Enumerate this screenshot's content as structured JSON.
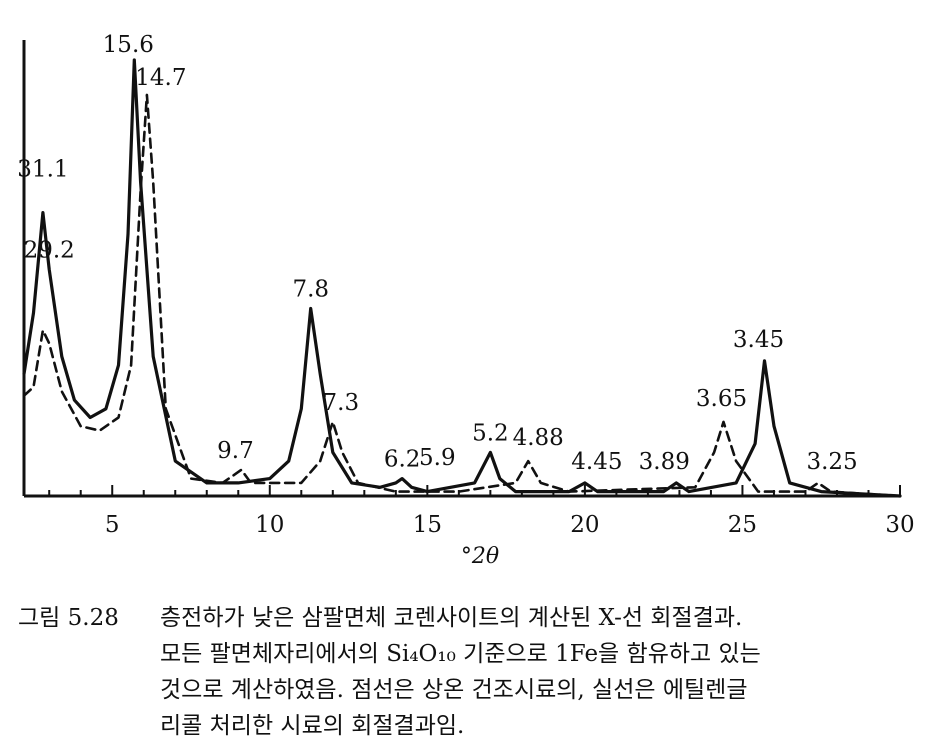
{
  "chart_data": {
    "type": "line",
    "xlabel": "°2θ",
    "xlim": [
      2.2,
      30
    ],
    "ylim": [
      0,
      100
    ],
    "x_ticks": [
      5,
      10,
      15,
      20,
      25,
      30
    ],
    "series": [
      {
        "style": "solid",
        "points": [
          [
            2.2,
            28
          ],
          [
            2.5,
            42
          ],
          [
            2.8,
            65
          ],
          [
            3.0,
            52
          ],
          [
            3.4,
            32
          ],
          [
            3.8,
            22
          ],
          [
            4.3,
            18
          ],
          [
            4.8,
            20
          ],
          [
            5.2,
            30
          ],
          [
            5.5,
            60
          ],
          [
            5.7,
            100
          ],
          [
            5.9,
            72
          ],
          [
            6.3,
            32
          ],
          [
            7.0,
            8
          ],
          [
            8.0,
            3
          ],
          [
            9.0,
            3
          ],
          [
            10.0,
            4
          ],
          [
            10.6,
            8
          ],
          [
            11.0,
            20
          ],
          [
            11.3,
            43
          ],
          [
            11.6,
            28
          ],
          [
            12.0,
            10
          ],
          [
            12.6,
            3
          ],
          [
            13.5,
            2
          ],
          [
            14.0,
            3
          ],
          [
            14.2,
            4
          ],
          [
            14.5,
            2
          ],
          [
            15.0,
            1
          ],
          [
            16.5,
            3
          ],
          [
            17.0,
            10
          ],
          [
            17.3,
            4
          ],
          [
            17.8,
            1
          ],
          [
            19.5,
            1
          ],
          [
            20.0,
            3
          ],
          [
            20.4,
            1
          ],
          [
            22.5,
            1
          ],
          [
            22.9,
            3
          ],
          [
            23.3,
            1
          ],
          [
            24.8,
            3
          ],
          [
            25.4,
            12
          ],
          [
            25.7,
            31
          ],
          [
            26.0,
            16
          ],
          [
            26.5,
            3
          ],
          [
            27.5,
            1
          ],
          [
            30,
            0
          ]
        ]
      },
      {
        "style": "dashed",
        "points": [
          [
            2.2,
            23
          ],
          [
            2.5,
            25
          ],
          [
            2.8,
            38
          ],
          [
            3.0,
            35
          ],
          [
            3.4,
            24
          ],
          [
            4.0,
            16
          ],
          [
            4.6,
            15
          ],
          [
            5.2,
            18
          ],
          [
            5.6,
            30
          ],
          [
            5.9,
            70
          ],
          [
            6.1,
            92
          ],
          [
            6.3,
            72
          ],
          [
            6.7,
            20
          ],
          [
            7.5,
            4
          ],
          [
            8.5,
            3
          ],
          [
            8.9,
            5
          ],
          [
            9.1,
            6
          ],
          [
            9.4,
            3
          ],
          [
            10.0,
            3
          ],
          [
            11.0,
            3
          ],
          [
            11.6,
            8
          ],
          [
            12.0,
            17
          ],
          [
            12.3,
            10
          ],
          [
            12.8,
            3
          ],
          [
            14.0,
            1
          ],
          [
            16.0,
            1
          ],
          [
            17.8,
            3
          ],
          [
            18.2,
            8
          ],
          [
            18.6,
            3
          ],
          [
            19.5,
            1
          ],
          [
            23.5,
            2
          ],
          [
            24.1,
            10
          ],
          [
            24.4,
            17
          ],
          [
            24.8,
            8
          ],
          [
            25.5,
            1
          ],
          [
            27.0,
            1
          ],
          [
            27.4,
            3
          ],
          [
            27.8,
            1
          ],
          [
            30,
            0
          ]
        ]
      }
    ],
    "peak_labels": [
      {
        "text": "31.1",
        "x": 2.8,
        "y": 65
      },
      {
        "text": "29.2",
        "x": 3.0,
        "y": 52
      },
      {
        "text": "15.6",
        "x": 5.7,
        "y": 100
      },
      {
        "text": "14.7",
        "x": 6.1,
        "y": 92
      },
      {
        "text": "9.7",
        "x": 9.1,
        "y": 6
      },
      {
        "text": "7.8",
        "x": 11.3,
        "y": 43
      },
      {
        "text": "7.3",
        "x": 12.0,
        "y": 17
      },
      {
        "text": "6.2",
        "x": 14.2,
        "y": 4
      },
      {
        "text": "5.9",
        "x": 15.0,
        "y": 3
      },
      {
        "text": "5.2",
        "x": 17.0,
        "y": 10
      },
      {
        "text": "4.88",
        "x": 18.2,
        "y": 8
      },
      {
        "text": "4.45",
        "x": 20.0,
        "y": 3
      },
      {
        "text": "3.89",
        "x": 22.9,
        "y": 3
      },
      {
        "text": "3.65",
        "x": 24.4,
        "y": 17
      },
      {
        "text": "3.45",
        "x": 25.7,
        "y": 31
      },
      {
        "text": "3.25",
        "x": 27.4,
        "y": 3
      }
    ]
  },
  "caption": {
    "number": "그림 5.28",
    "lines": [
      "층전하가 낮은 삼팔면체 코렌사이트의 계산된 X-선 회절결과.",
      "모든 팔면체자리에서의 Si₄O₁₀ 기준으로 1Fe을 함유하고 있는",
      "것으로 계산하였음. 점선은 상온 건조시료의, 실선은 에틸렌글",
      "리콜 처리한 시료의 회절결과임."
    ]
  }
}
